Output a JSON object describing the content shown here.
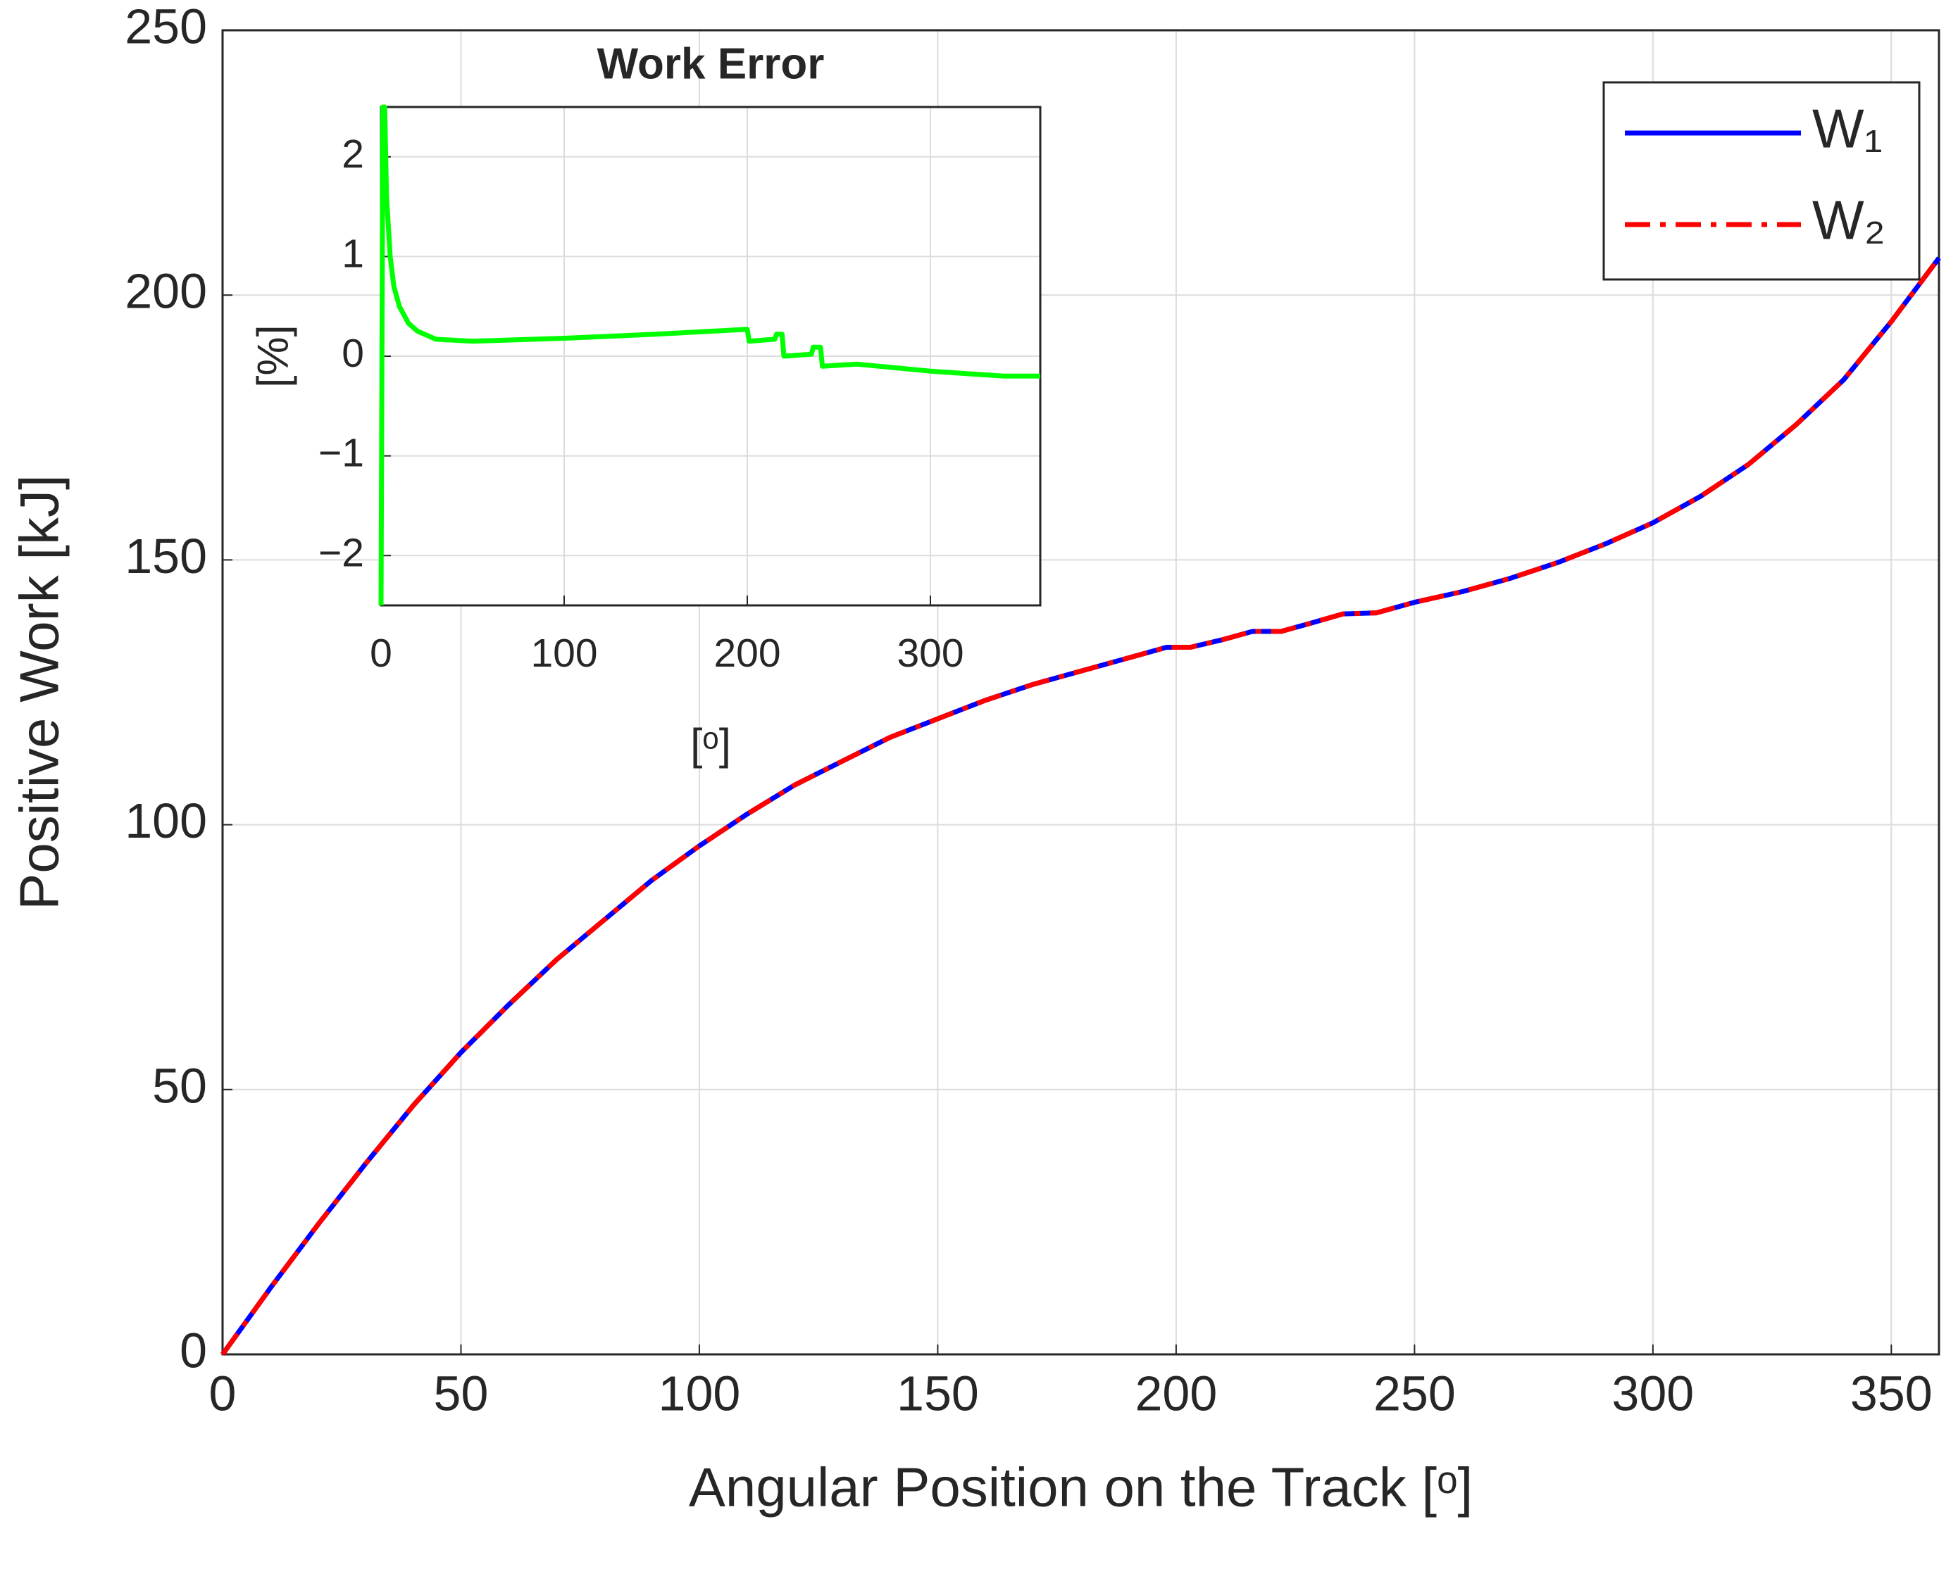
{
  "chart_data": [
    {
      "type": "line",
      "x_label": "Angular Position on the Track [ᵒ]",
      "y_label": "Positive Work [kJ]",
      "x": [
        0,
        10,
        20,
        30,
        40,
        50,
        60,
        70,
        80,
        90,
        100,
        110,
        120,
        130,
        140,
        150,
        160,
        170,
        180,
        190,
        198,
        203,
        210,
        216,
        222,
        228,
        235,
        242,
        250,
        260,
        270,
        280,
        290,
        300,
        310,
        320,
        330,
        340,
        350,
        360
      ],
      "series": [
        {
          "name": "W₁",
          "color": "#0000ff",
          "line_style": "solid",
          "values": [
            0,
            12.5,
            24.5,
            36,
            47,
            57,
            66,
            74.5,
            82,
            89.5,
            96,
            102,
            107.5,
            112,
            116.5,
            120,
            123.5,
            126.5,
            129,
            131.5,
            133.5,
            133.5,
            135,
            136.5,
            136.5,
            138,
            139.8,
            140,
            142,
            144,
            146.5,
            149.5,
            153,
            157,
            162,
            168,
            175.5,
            184,
            195,
            207
          ]
        },
        {
          "name": "W₂",
          "color": "#ff0000",
          "line_style": "dash-dot",
          "values": [
            0,
            12.5,
            24.5,
            36,
            47,
            57,
            66,
            74.5,
            82,
            89.5,
            96,
            102,
            107.5,
            112,
            116.5,
            120,
            123.5,
            126.5,
            129,
            131.5,
            133.5,
            133.5,
            135,
            136.5,
            136.5,
            138,
            139.8,
            140,
            142,
            144,
            146.5,
            149.5,
            153,
            157,
            162,
            168,
            175.5,
            184,
            195,
            207
          ]
        }
      ],
      "xlim": [
        0,
        360
      ],
      "ylim": [
        0,
        250
      ],
      "xticks": [
        0,
        50,
        100,
        150,
        200,
        250,
        300,
        350
      ],
      "yticks": [
        0,
        50,
        100,
        150,
        200,
        250
      ],
      "grid": true,
      "legend": "upper right"
    },
    {
      "type": "line",
      "title": "Work Error",
      "x_label": "[ᵒ]",
      "y_label": "[%]",
      "x": [
        0,
        1,
        2,
        3,
        5,
        7,
        10,
        15,
        20,
        30,
        50,
        100,
        150,
        200,
        201,
        215,
        216,
        219,
        220,
        235,
        236,
        240,
        241,
        260,
        300,
        340,
        360
      ],
      "series": [
        {
          "color": "#00ff00",
          "line_style": "solid",
          "values": [
            -2.5,
            2.5,
            2.5,
            1.6,
            1.0,
            0.7,
            0.5,
            0.33,
            0.25,
            0.17,
            0.15,
            0.18,
            0.22,
            0.27,
            0.15,
            0.17,
            0.22,
            0.22,
            0.0,
            0.02,
            0.09,
            0.09,
            -0.1,
            -0.08,
            -0.15,
            -0.2,
            -0.2
          ]
        }
      ],
      "xlim": [
        0,
        360
      ],
      "ylim": [
        -2.5,
        2.5
      ],
      "xticks": [
        0,
        100,
        200,
        300
      ],
      "yticks": [
        {
          "value": -2,
          "label": "−2"
        },
        {
          "value": -1,
          "label": "−1"
        },
        0,
        1,
        2
      ],
      "grid": true
    }
  ]
}
